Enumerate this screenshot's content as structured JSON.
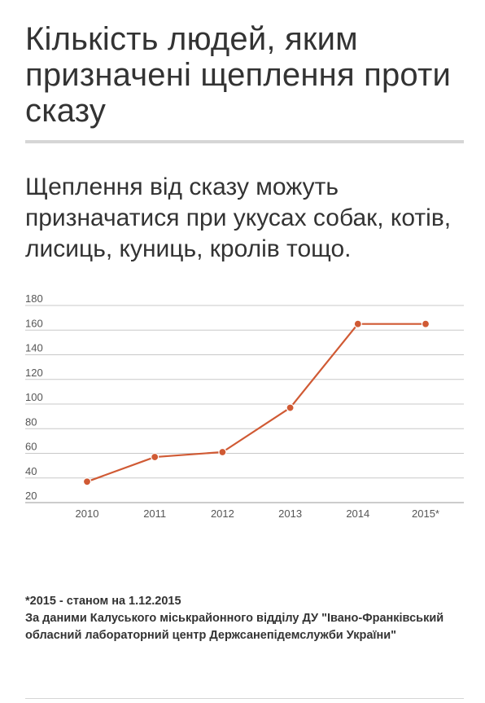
{
  "title": "Кількість людей, яким призначені щеплення проти сказу",
  "subtitle": "Щеплення від сказу можуть призначатися при укусах собак, котів, лисиць, куниць, кролів тощо.",
  "chart_data": {
    "type": "line",
    "categories": [
      "2010",
      "2011",
      "2012",
      "2013",
      "2014",
      "2015*"
    ],
    "series": [
      {
        "values": [
          37,
          57,
          61,
          97,
          165,
          165
        ],
        "color": "#d05a34"
      }
    ],
    "yticks": [
      "180",
      "160",
      "140",
      "120",
      "100",
      "80",
      "60",
      "40",
      "20"
    ],
    "ylim": [
      20,
      180
    ],
    "grid": true,
    "title": "",
    "xlabel": "",
    "ylabel": ""
  },
  "notes": {
    "footnote": "*2015 - станом на 1.12.2015",
    "source": "За даними Калуського міськрайонного відділу ДУ \"Івано-Франківський обласний лабораторний центр Держсанепідемслужби України\""
  }
}
